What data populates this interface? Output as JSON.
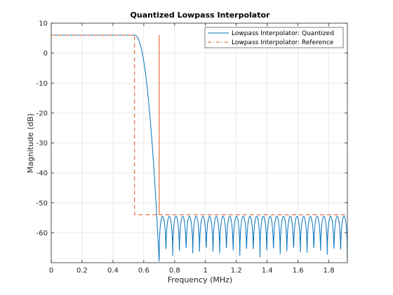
{
  "chart_data": {
    "type": "line",
    "title": "Quantized Lowpass Interpolator",
    "xlabel": "Frequency (MHz)",
    "ylabel": "Magnitude (dB)",
    "xlim": [
      0,
      1.92
    ],
    "ylim": [
      -70,
      10
    ],
    "xticks": [
      0,
      0.2,
      0.4,
      0.6,
      0.8,
      1,
      1.2,
      1.4,
      1.6,
      1.8
    ],
    "xtick_labels": [
      "0",
      "0.2",
      "0.4",
      "0.6",
      "0.8",
      "1",
      "1.2",
      "1.4",
      "1.6",
      "1.8"
    ],
    "yticks": [
      10,
      0,
      -10,
      -20,
      -30,
      -40,
      -50,
      -60
    ],
    "ytick_labels": [
      "10",
      "0",
      "-10",
      "-20",
      "-30",
      "-40",
      "-50",
      "-60"
    ],
    "grid": true,
    "legend_position": "top-right",
    "series": [
      {
        "name": "Lowpass Interpolator: Quantized",
        "color": "#0072BD",
        "style": "solid",
        "passband_gain_db": 6.0,
        "rolloff_start_mhz": 0.54,
        "transition_end_mhz": 0.7,
        "stopband_ripple_count": 28,
        "stopband_peak_db": -54.5,
        "stopband_floor_db": -70
      },
      {
        "name": "Lowpass Interpolator: Reference",
        "color": "#D95319",
        "style": "dashed",
        "mask": [
          {
            "x": 0,
            "y": 6
          },
          {
            "x": 0.54,
            "y": 6
          },
          {
            "x": 0.54,
            "y": -54
          },
          {
            "x": 0.7,
            "y": -54
          },
          {
            "x": 0.7,
            "y": 6
          },
          {
            "x": 0.7,
            "y": -54
          },
          {
            "x": 1.92,
            "y": -54
          }
        ]
      }
    ]
  }
}
